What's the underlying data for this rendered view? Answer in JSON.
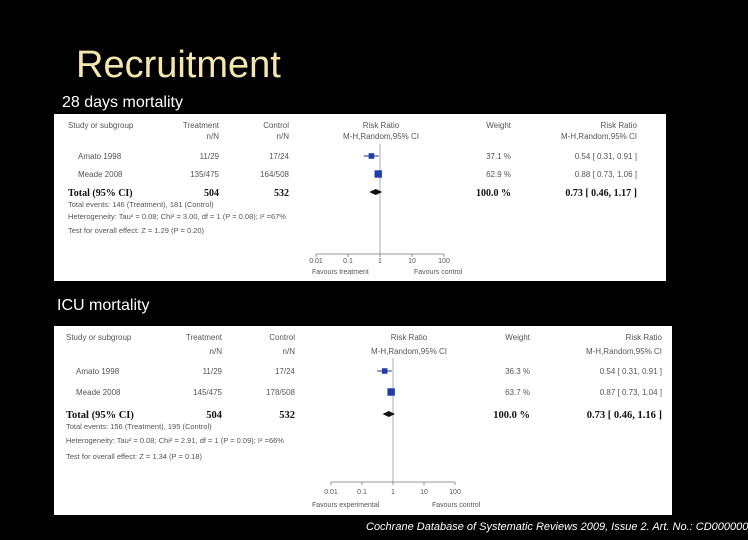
{
  "slide": {
    "title": "Recruitment",
    "citation": "Cochrane Database of Systematic Reviews 2009, Issue 2. Art. No.: CD000000"
  },
  "colors": {
    "background": "#000000",
    "title": "#f5e6b0",
    "marker": "#1f3ea8"
  },
  "forest_plots": [
    {
      "label": "28 days mortality",
      "headers": {
        "study": "Study or subgroup",
        "treatment": "Treatment",
        "treatment_sub": "n/N",
        "control": "Control",
        "control_sub": "n/N",
        "rr": "Risk Ratio",
        "rr_sub": "M-H,Random,95% CI",
        "weight": "Weight",
        "rr2": "Risk Ratio",
        "rr2_sub": "M-H,Random,95% CI"
      },
      "studies": [
        {
          "name": "Amato 1998",
          "treatment": "11/29",
          "control": "17/24",
          "weight": "37.1 %",
          "ci_text": "0.54 [ 0.31, 0.91 ]",
          "rr": 0.54,
          "lo": 0.31,
          "hi": 0.91,
          "wfrac": 0.371
        },
        {
          "name": "Meade 2008",
          "treatment": "135/475",
          "control": "164/508",
          "weight": "62.9 %",
          "ci_text": "0.88 [ 0.73, 1.06 ]",
          "rr": 0.88,
          "lo": 0.73,
          "hi": 1.06,
          "wfrac": 0.629
        }
      ],
      "total": {
        "label": "Total (95% CI)",
        "treatment": "504",
        "control": "532",
        "weight": "100.0 %",
        "ci_text": "0.73 [ 0.46, 1.17 ]",
        "rr": 0.73,
        "lo": 0.46,
        "hi": 1.17
      },
      "footnotes": [
        "Total events: 146 (Treatment), 181 (Control)",
        "Heterogeneity: Tau² = 0.08; Chi² = 3.00, df = 1 (P = 0.08); I² =67%",
        "Test for overall effect: Z = 1.29 (P = 0.20)"
      ],
      "axis_ticks": [
        "0.01",
        "0.1",
        "1",
        "10",
        "100"
      ],
      "favours_left": "Favours treatment",
      "favours_right": "Favours control"
    },
    {
      "label": "ICU mortality",
      "headers": {
        "study": "Study or subgroup",
        "treatment": "Treatment",
        "treatment_sub": "n/N",
        "control": "Control",
        "control_sub": "n/N",
        "rr": "Risk Ratio",
        "rr_sub": "M-H,Random,95% CI",
        "weight": "Weight",
        "rr2": "Risk Ratio",
        "rr2_sub": "M-H,Random,95% CI"
      },
      "studies": [
        {
          "name": "Amato 1998",
          "treatment": "11/29",
          "control": "17/24",
          "weight": "36.3 %",
          "ci_text": "0.54 [ 0.31, 0.91 ]",
          "rr": 0.54,
          "lo": 0.31,
          "hi": 0.91,
          "wfrac": 0.363
        },
        {
          "name": "Meade 2008",
          "treatment": "145/475",
          "control": "178/508",
          "weight": "63.7 %",
          "ci_text": "0.87 [ 0.73, 1.04 ]",
          "rr": 0.87,
          "lo": 0.73,
          "hi": 1.04,
          "wfrac": 0.637
        }
      ],
      "total": {
        "label": "Total (95% CI)",
        "treatment": "504",
        "control": "532",
        "weight": "100.0 %",
        "ci_text": "0.73 [ 0.46, 1.16 ]",
        "rr": 0.73,
        "lo": 0.46,
        "hi": 1.16
      },
      "footnotes": [
        "Total events: 156 (Treatment), 195 (Control)",
        "Heterogeneity: Tau² = 0.08; Chi² = 2.91, df = 1 (P = 0.09); I² =66%",
        "Test for overall effect: Z = 1.34 (P = 0.18)"
      ],
      "axis_ticks": [
        "0.01",
        "0.1",
        "1",
        "10",
        "100"
      ],
      "favours_left": "Favours experimental",
      "favours_right": "Favours control"
    }
  ]
}
